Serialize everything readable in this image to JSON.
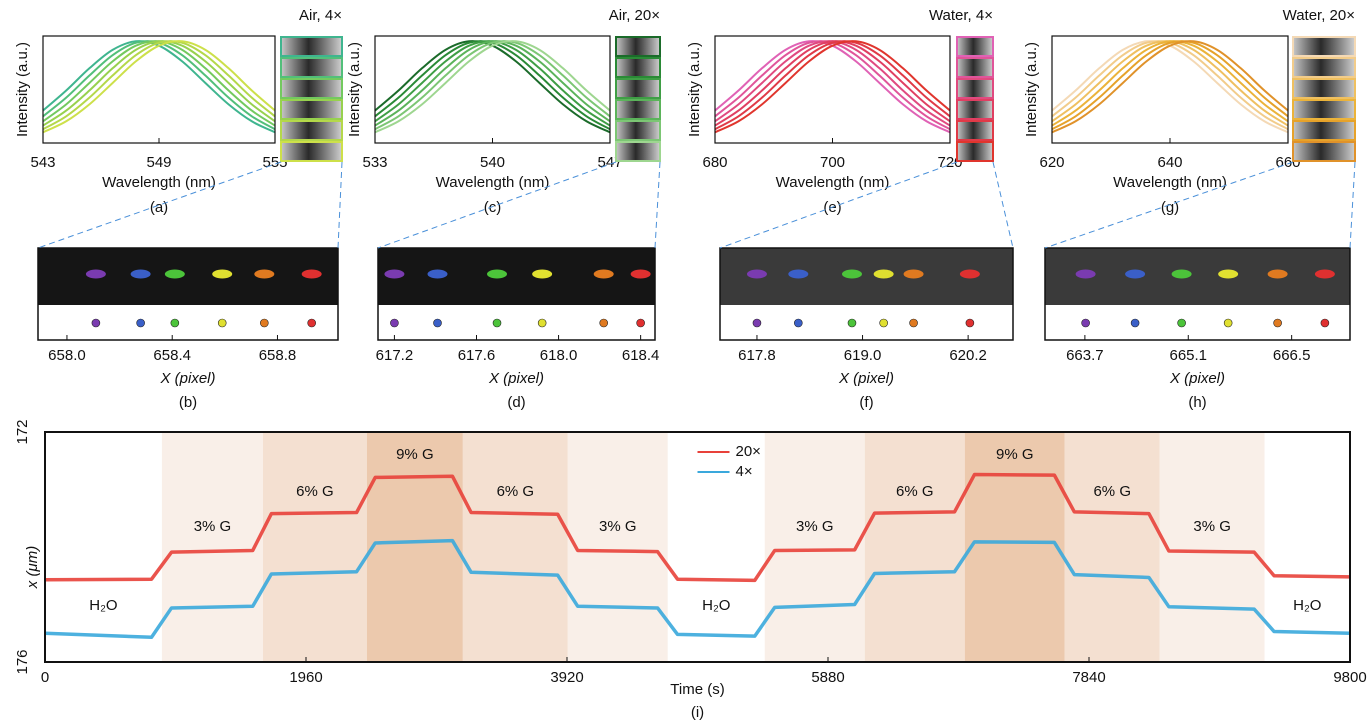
{
  "chart_data": [
    {
      "type": "line",
      "title": "Air, 4×",
      "label": "(a)",
      "xlabel": "Wavelength (nm)",
      "ylabel": "Intensity (a.u.)",
      "x": [
        543,
        544.2,
        545.4,
        546.6,
        547.8,
        549,
        550.2,
        551.4,
        552.6,
        553.8,
        555
      ],
      "series": [
        {
          "color": "#3fb58f",
          "values": [
            0.318,
            0.515,
            0.733,
            0.914,
            0.998,
            0.955,
            0.801,
            0.589,
            0.379,
            0.213,
            0.105
          ]
        },
        {
          "color": "#52bf7a",
          "values": [
            0.262,
            0.445,
            0.662,
            0.862,
            0.984,
            0.984,
            0.862,
            0.662,
            0.445,
            0.262,
            0.135
          ]
        },
        {
          "color": "#73c95f",
          "values": [
            0.213,
            0.379,
            0.589,
            0.801,
            0.955,
            0.998,
            0.914,
            0.733,
            0.515,
            0.318,
            0.171
          ]
        },
        {
          "color": "#97d14e",
          "values": [
            0.171,
            0.318,
            0.515,
            0.733,
            0.914,
            0.998,
            0.955,
            0.801,
            0.589,
            0.379,
            0.213
          ]
        },
        {
          "color": "#b4d84a",
          "values": [
            0.135,
            0.262,
            0.445,
            0.662,
            0.862,
            0.984,
            0.984,
            0.862,
            0.662,
            0.445,
            0.262
          ]
        },
        {
          "color": "#cde04a",
          "values": [
            0.105,
            0.213,
            0.379,
            0.589,
            0.801,
            0.955,
            0.998,
            0.914,
            0.733,
            0.515,
            0.318
          ]
        }
      ],
      "xlim": [
        543,
        555
      ],
      "xticks": [
        543,
        549,
        555
      ],
      "ylim": [
        0,
        1.05
      ]
    },
    {
      "type": "line",
      "title": "Air, 20×",
      "label": "(c)",
      "xlabel": "Wavelength (nm)",
      "ylabel": "Intensity (a.u.)",
      "x": [
        533,
        534.4,
        535.8,
        537.2,
        538.6,
        540,
        541.4,
        542.8,
        544.2,
        545.6,
        547
      ],
      "series": [
        {
          "color": "#1b6b2a",
          "values": [
            0.318,
            0.515,
            0.733,
            0.914,
            0.998,
            0.955,
            0.801,
            0.589,
            0.379,
            0.213,
            0.105
          ]
        },
        {
          "color": "#2a8a36",
          "values": [
            0.262,
            0.445,
            0.662,
            0.862,
            0.984,
            0.984,
            0.862,
            0.662,
            0.445,
            0.262,
            0.135
          ]
        },
        {
          "color": "#3f9e45",
          "values": [
            0.213,
            0.379,
            0.589,
            0.801,
            0.955,
            0.998,
            0.914,
            0.733,
            0.515,
            0.318,
            0.171
          ]
        },
        {
          "color": "#5bb35a",
          "values": [
            0.171,
            0.318,
            0.515,
            0.733,
            0.914,
            0.998,
            0.955,
            0.801,
            0.589,
            0.379,
            0.213
          ]
        },
        {
          "color": "#7cc674",
          "values": [
            0.135,
            0.262,
            0.445,
            0.662,
            0.862,
            0.984,
            0.984,
            0.862,
            0.662,
            0.445,
            0.262
          ]
        },
        {
          "color": "#9ed690",
          "values": [
            0.105,
            0.213,
            0.379,
            0.589,
            0.801,
            0.955,
            0.998,
            0.914,
            0.733,
            0.515,
            0.318
          ]
        }
      ],
      "xlim": [
        533,
        547
      ],
      "xticks": [
        533,
        540,
        547
      ],
      "ylim": [
        0,
        1.05
      ]
    },
    {
      "type": "line",
      "title": "Water, 4×",
      "label": "(e)",
      "xlabel": "Wavelength (nm)",
      "ylabel": "Intensity (a.u.)",
      "x": [
        680,
        684,
        688,
        692,
        696,
        700,
        704,
        708,
        712,
        716,
        720
      ],
      "series": [
        {
          "color": "#e062b5",
          "values": [
            0.318,
            0.515,
            0.733,
            0.914,
            0.998,
            0.955,
            0.801,
            0.589,
            0.379,
            0.213,
            0.105
          ]
        },
        {
          "color": "#e0559a",
          "values": [
            0.262,
            0.445,
            0.662,
            0.862,
            0.984,
            0.984,
            0.862,
            0.662,
            0.445,
            0.262,
            0.135
          ]
        },
        {
          "color": "#e04a80",
          "values": [
            0.213,
            0.379,
            0.589,
            0.801,
            0.955,
            0.998,
            0.914,
            0.733,
            0.515,
            0.318,
            0.171
          ]
        },
        {
          "color": "#e03f62",
          "values": [
            0.171,
            0.318,
            0.515,
            0.733,
            0.914,
            0.998,
            0.955,
            0.801,
            0.589,
            0.379,
            0.213
          ]
        },
        {
          "color": "#e03a47",
          "values": [
            0.135,
            0.262,
            0.445,
            0.662,
            0.862,
            0.984,
            0.984,
            0.862,
            0.662,
            0.445,
            0.262
          ]
        },
        {
          "color": "#e0352d",
          "values": [
            0.105,
            0.213,
            0.379,
            0.589,
            0.801,
            0.955,
            0.998,
            0.914,
            0.733,
            0.515,
            0.318
          ]
        }
      ],
      "xlim": [
        680,
        720
      ],
      "xticks": [
        680,
        700,
        720
      ],
      "ylim": [
        0,
        1.05
      ]
    },
    {
      "type": "line",
      "title": "Water, 20×",
      "label": "(g)",
      "xlabel": "Wavelength (nm)",
      "ylabel": "Intensity (a.u.)",
      "x": [
        620,
        624,
        628,
        632,
        636,
        640,
        644,
        648,
        652,
        656,
        660
      ],
      "series": [
        {
          "color": "#f4d9b5",
          "values": [
            0.318,
            0.515,
            0.733,
            0.914,
            0.998,
            0.955,
            0.801,
            0.589,
            0.379,
            0.213,
            0.105
          ]
        },
        {
          "color": "#f2cc8a",
          "values": [
            0.262,
            0.445,
            0.662,
            0.862,
            0.984,
            0.984,
            0.862,
            0.662,
            0.445,
            0.262,
            0.135
          ]
        },
        {
          "color": "#efc060",
          "values": [
            0.213,
            0.379,
            0.589,
            0.801,
            0.955,
            0.998,
            0.914,
            0.733,
            0.515,
            0.318,
            0.171
          ]
        },
        {
          "color": "#ebb33a",
          "values": [
            0.171,
            0.318,
            0.515,
            0.733,
            0.914,
            0.998,
            0.955,
            0.801,
            0.589,
            0.379,
            0.213
          ]
        },
        {
          "color": "#e6a22a",
          "values": [
            0.135,
            0.262,
            0.445,
            0.662,
            0.862,
            0.984,
            0.984,
            0.862,
            0.662,
            0.445,
            0.262
          ]
        },
        {
          "color": "#e0922a",
          "values": [
            0.105,
            0.213,
            0.379,
            0.589,
            0.801,
            0.955,
            0.998,
            0.914,
            0.733,
            0.515,
            0.318
          ]
        }
      ],
      "xlim": [
        620,
        660
      ],
      "xticks": [
        620,
        640,
        660
      ],
      "ylim": [
        0,
        1.05
      ]
    },
    {
      "type": "strip",
      "label": "(b)",
      "xlabel": "X (pixel)",
      "background": "#151515",
      "x": [
        658.11,
        658.28,
        658.41,
        658.59,
        658.75,
        658.93
      ],
      "colors": [
        "#7a3bb0",
        "#3a5fc8",
        "#4cc43a",
        "#e0e030",
        "#e07a20",
        "#e03030"
      ],
      "xlim": [
        657.89,
        659.03
      ],
      "xticks": [
        {
          "value": 658,
          "label": "658.0"
        },
        658.4,
        658.8
      ]
    },
    {
      "type": "strip",
      "label": "(d)",
      "xlabel": "X (pixel)",
      "background": "#151515",
      "x": [
        617.2,
        617.41,
        617.7,
        617.92,
        618.22,
        618.4
      ],
      "colors": [
        "#7a3bb0",
        "#3a5fc8",
        "#4cc43a",
        "#e0e030",
        "#e07a20",
        "#e03030"
      ],
      "xlim": [
        617.12,
        618.47
      ],
      "xticks": [
        617.2,
        617.6,
        {
          "value": 618,
          "label": "618.0"
        },
        618.4
      ]
    },
    {
      "type": "strip",
      "label": "(f)",
      "xlabel": "X (pixel)",
      "background": "#3a3a3a",
      "x": [
        617.8,
        618.27,
        618.88,
        619.24,
        619.58,
        620.22
      ],
      "colors": [
        "#7a3bb0",
        "#3a5fc8",
        "#4cc43a",
        "#e0e030",
        "#e07a20",
        "#e03030"
      ],
      "xlim": [
        617.38,
        620.71
      ],
      "xticks": [
        617.8,
        {
          "value": 619,
          "label": "619.0"
        },
        620.2
      ]
    },
    {
      "type": "strip",
      "label": "(h)",
      "xlabel": "X (pixel)",
      "background": "#3a3a3a",
      "x": [
        663.71,
        664.38,
        665.01,
        665.64,
        666.31,
        666.95
      ],
      "colors": [
        "#7a3bb0",
        "#3a5fc8",
        "#4cc43a",
        "#e0e030",
        "#e07a20",
        "#e03030"
      ],
      "xlim": [
        663.16,
        667.29
      ],
      "xticks": [
        663.7,
        665.1,
        666.5
      ]
    },
    {
      "type": "line",
      "label": "(i)",
      "xlabel": "Time (s)",
      "ylabel": "x (μm)",
      "legend": "top",
      "x": [
        0,
        800,
        950,
        1560,
        1700,
        2340,
        2480,
        3060,
        3200,
        3850,
        4000,
        4600,
        4750,
        5330,
        5480,
        6080,
        6230,
        6830,
        6980,
        7580,
        7730,
        8290,
        8440,
        9080,
        9230,
        9800
      ],
      "series": [
        {
          "name": "20×",
          "color": "#e8413a",
          "values": [
            174.57,
            174.56,
            174.09,
            174.06,
            173.42,
            173.4,
            172.79,
            172.77,
            173.4,
            173.43,
            174.06,
            174.08,
            174.56,
            174.58,
            174.06,
            174.05,
            173.41,
            173.39,
            172.74,
            172.75,
            173.39,
            173.42,
            174.07,
            174.09,
            174.5,
            174.52
          ]
        },
        {
          "name": "4×",
          "color": "#3aa8dc",
          "values": [
            175.5,
            175.57,
            175.06,
            175.03,
            174.47,
            174.43,
            173.93,
            173.89,
            174.44,
            174.49,
            175.03,
            175.06,
            175.52,
            175.55,
            175.05,
            175,
            174.46,
            174.43,
            173.91,
            173.92,
            174.48,
            174.53,
            175.04,
            175.08,
            175.47,
            175.5
          ]
        }
      ],
      "regions": [
        {
          "start": 0,
          "end": 878,
          "label": "H₂O",
          "color": "#ffffff"
        },
        {
          "start": 878,
          "end": 1637,
          "label": "3% G",
          "color": "#f9efe8"
        },
        {
          "start": 1637,
          "end": 2417,
          "label": "6% G",
          "color": "#f4e0d1"
        },
        {
          "start": 2417,
          "end": 3138,
          "label": "9% G",
          "color": "#ecc9ad"
        },
        {
          "start": 3138,
          "end": 3926,
          "label": "6% G",
          "color": "#f4e0d1"
        },
        {
          "start": 3926,
          "end": 4677,
          "label": "3% G",
          "color": "#f9efe8"
        },
        {
          "start": 4677,
          "end": 5405,
          "label": "H₂O",
          "color": "#ffffff"
        },
        {
          "start": 5405,
          "end": 6156,
          "label": "3% G",
          "color": "#f9efe8"
        },
        {
          "start": 6156,
          "end": 6907,
          "label": "6% G",
          "color": "#f4e0d1"
        },
        {
          "start": 6907,
          "end": 7658,
          "label": "9% G",
          "color": "#ecc9ad"
        },
        {
          "start": 7658,
          "end": 8371,
          "label": "6% G",
          "color": "#f4e0d1"
        },
        {
          "start": 8371,
          "end": 9159,
          "label": "3% G",
          "color": "#f9efe8"
        },
        {
          "start": 9159,
          "end": 9800,
          "label": "H₂O",
          "color": "#ffffff"
        }
      ],
      "xlim": [
        0,
        9800
      ],
      "xticks": [
        0,
        1960,
        3920,
        5880,
        7840,
        9800
      ],
      "ylim": [
        176,
        172
      ],
      "yticks": [
        172,
        176
      ]
    }
  ]
}
